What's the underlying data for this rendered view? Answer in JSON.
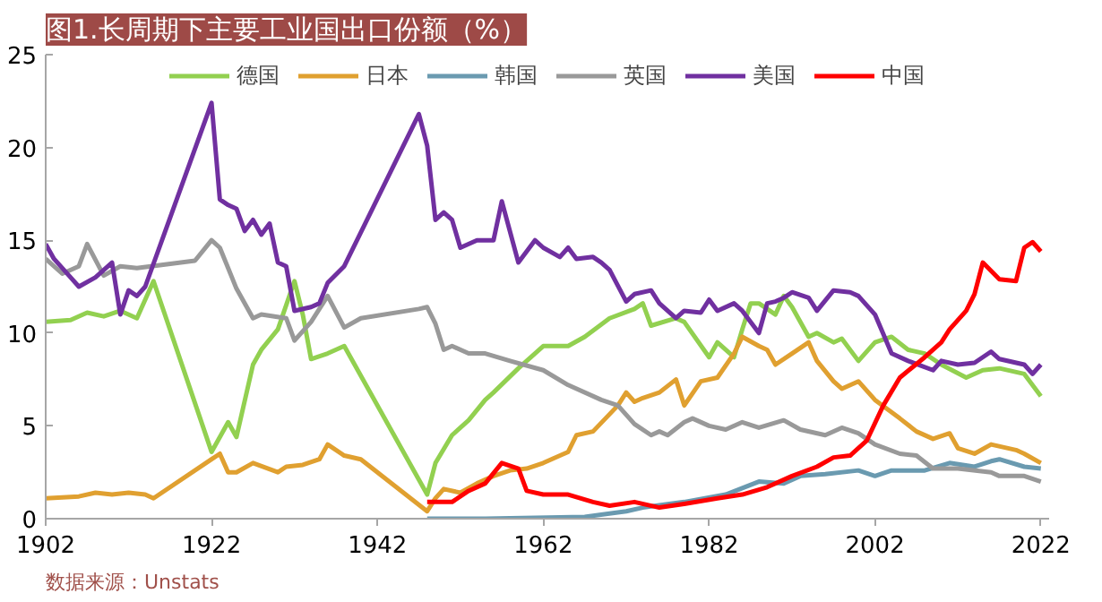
{
  "chart_data": {
    "type": "line",
    "title": "图1.长周期下主要工业国出口份额（%）",
    "annotations": [
      "数据来源：Unstats"
    ],
    "xlim": [
      1902,
      2023
    ],
    "xticks": [
      1902,
      1922,
      1942,
      1962,
      1982,
      2002,
      2022
    ],
    "ylim": [
      0,
      25
    ],
    "yticks": [
      0,
      5,
      10,
      15,
      20,
      25
    ],
    "grid": false,
    "legend": "top",
    "line_style": "solid",
    "marker": "none",
    "series": [
      {
        "name": "德国",
        "color": "#92d050",
        "x": [
          1902,
          1905,
          1907,
          1909,
          1911,
          1913,
          1915,
          1922,
          1924,
          1925,
          1927,
          1928,
          1930,
          1932,
          1933,
          1934,
          1936,
          1938,
          1948,
          1949,
          1951,
          1953,
          1955,
          1956,
          1959,
          1962,
          1965,
          1967,
          1970,
          1973,
          1974,
          1975,
          1978,
          1979,
          1982,
          1983,
          1985,
          1986,
          1987,
          1988,
          1990,
          1991,
          1992,
          1994,
          1995,
          1997,
          1998,
          2000,
          2002,
          2004,
          2006,
          2008,
          2010,
          2013,
          2015,
          2017,
          2020,
          2022
        ],
        "values": [
          10.6,
          10.7,
          11.1,
          10.9,
          11.2,
          10.8,
          12.8,
          3.6,
          5.2,
          4.4,
          8.3,
          9.1,
          10.2,
          12.8,
          11.0,
          8.6,
          8.9,
          9.3,
          1.3,
          3.0,
          4.5,
          5.3,
          6.4,
          6.8,
          8.1,
          9.3,
          9.3,
          9.8,
          10.8,
          11.3,
          11.6,
          10.4,
          10.8,
          10.6,
          8.7,
          9.5,
          8.7,
          10.2,
          11.6,
          11.6,
          11.0,
          12.0,
          11.4,
          9.8,
          10.0,
          9.5,
          9.7,
          8.5,
          9.5,
          9.8,
          9.1,
          8.9,
          8.3,
          7.6,
          8.0,
          8.1,
          7.8,
          6.6
        ]
      },
      {
        "name": "日本",
        "color": "#e0a030",
        "x": [
          1902,
          1906,
          1908,
          1910,
          1912,
          1914,
          1915,
          1922,
          1923,
          1924,
          1925,
          1927,
          1930,
          1931,
          1933,
          1935,
          1936,
          1938,
          1940,
          1948,
          1949,
          1950,
          1952,
          1954,
          1956,
          1958,
          1960,
          1962,
          1965,
          1966,
          1968,
          1971,
          1972,
          1973,
          1974,
          1976,
          1978,
          1979,
          1981,
          1983,
          1985,
          1986,
          1988,
          1989,
          1990,
          1992,
          1994,
          1995,
          1997,
          1998,
          2000,
          2002,
          2005,
          2007,
          2009,
          2011,
          2012,
          2014,
          2016,
          2019,
          2020,
          2022
        ],
        "values": [
          1.1,
          1.2,
          1.4,
          1.3,
          1.4,
          1.3,
          1.1,
          3.2,
          3.5,
          2.5,
          2.5,
          3.0,
          2.5,
          2.8,
          2.9,
          3.2,
          4.0,
          3.4,
          3.2,
          0.4,
          1.1,
          1.6,
          1.4,
          1.9,
          2.3,
          2.6,
          2.7,
          3.0,
          3.6,
          4.5,
          4.7,
          6.1,
          6.8,
          6.3,
          6.5,
          6.8,
          7.5,
          6.1,
          7.4,
          7.6,
          8.9,
          9.8,
          9.3,
          9.1,
          8.3,
          8.9,
          9.5,
          8.5,
          7.4,
          7.0,
          7.4,
          6.4,
          5.4,
          4.7,
          4.3,
          4.6,
          3.8,
          3.5,
          4.0,
          3.7,
          3.5,
          3.0
        ]
      },
      {
        "name": "韩国",
        "color": "#6a9ab0",
        "x": [
          1948,
          1955,
          1967,
          1972,
          1974,
          1979,
          1984,
          1988,
          1991,
          1993,
          1996,
          2000,
          2002,
          2004,
          2008,
          2011,
          2014,
          2016,
          2017,
          2020,
          2022
        ],
        "values": [
          0,
          0,
          0.1,
          0.4,
          0.6,
          0.9,
          1.3,
          2.0,
          1.9,
          2.3,
          2.4,
          2.6,
          2.3,
          2.6,
          2.6,
          3.0,
          2.8,
          3.1,
          3.2,
          2.8,
          2.7
        ]
      },
      {
        "name": "英国",
        "color": "#999999",
        "x": [
          1902,
          1904,
          1906,
          1907,
          1909,
          1911,
          1913,
          1920,
          1922,
          1923,
          1925,
          1927,
          1928,
          1931,
          1932,
          1934,
          1936,
          1938,
          1940,
          1947,
          1948,
          1949,
          1950,
          1951,
          1953,
          1955,
          1958,
          1962,
          1965,
          1969,
          1971,
          1973,
          1975,
          1976,
          1977,
          1979,
          1980,
          1982,
          1984,
          1986,
          1988,
          1991,
          1993,
          1996,
          1998,
          2000,
          2002,
          2005,
          2007,
          2009,
          2012,
          2016,
          2017,
          2020,
          2022
        ],
        "values": [
          14.0,
          13.2,
          13.6,
          14.8,
          13.1,
          13.6,
          13.5,
          13.9,
          15.0,
          14.6,
          12.4,
          10.8,
          11.0,
          10.8,
          9.6,
          10.6,
          12.0,
          10.3,
          10.8,
          11.3,
          11.4,
          10.5,
          9.1,
          9.3,
          8.9,
          8.9,
          8.5,
          8.0,
          7.2,
          6.4,
          6.1,
          5.1,
          4.5,
          4.7,
          4.5,
          5.2,
          5.4,
          5.0,
          4.8,
          5.2,
          4.9,
          5.3,
          4.8,
          4.5,
          4.9,
          4.6,
          4.0,
          3.5,
          3.4,
          2.7,
          2.7,
          2.5,
          2.3,
          2.3,
          2.0
        ]
      },
      {
        "name": "美国",
        "color": "#7030a0",
        "x": [
          1902,
          1903,
          1905,
          1906,
          1908,
          1910,
          1911,
          1912,
          1913,
          1914,
          1922,
          1923,
          1924,
          1925,
          1926,
          1927,
          1928,
          1929,
          1930,
          1931,
          1932,
          1934,
          1935,
          1936,
          1938,
          1947,
          1948,
          1949,
          1950,
          1951,
          1952,
          1954,
          1956,
          1957,
          1959,
          1961,
          1962,
          1964,
          1965,
          1966,
          1968,
          1969,
          1970,
          1972,
          1973,
          1975,
          1976,
          1978,
          1979,
          1981,
          1982,
          1983,
          1985,
          1986,
          1988,
          1989,
          1990,
          1991,
          1992,
          1994,
          1995,
          1997,
          1999,
          2000,
          2002,
          2004,
          2006,
          2009,
          2010,
          2012,
          2014,
          2016,
          2017,
          2020,
          2021,
          2022
        ],
        "values": [
          14.8,
          14.0,
          13.0,
          12.5,
          13.0,
          13.8,
          11.0,
          12.3,
          12.0,
          12.5,
          22.4,
          17.2,
          16.9,
          16.7,
          15.5,
          16.1,
          15.3,
          15.9,
          13.8,
          13.6,
          11.2,
          11.4,
          11.6,
          12.7,
          13.6,
          21.8,
          20.1,
          16.1,
          16.5,
          16.1,
          14.6,
          15.0,
          15.0,
          17.1,
          13.8,
          15.0,
          14.6,
          14.1,
          14.6,
          14.0,
          14.1,
          13.8,
          13.4,
          11.7,
          12.1,
          12.3,
          11.6,
          10.8,
          11.2,
          11.1,
          11.8,
          11.2,
          11.6,
          11.2,
          10.0,
          11.6,
          11.7,
          11.9,
          12.2,
          11.9,
          11.2,
          12.3,
          12.2,
          12.0,
          11.0,
          8.9,
          8.5,
          8.0,
          8.5,
          8.3,
          8.4,
          9.0,
          8.6,
          8.3,
          7.8,
          8.3
        ]
      },
      {
        "name": "中国",
        "color": "#ff0000",
        "x": [
          1948,
          1951,
          1953,
          1955,
          1957,
          1959,
          1960,
          1962,
          1965,
          1968,
          1970,
          1973,
          1976,
          1979,
          1983,
          1986,
          1989,
          1992,
          1995,
          1997,
          1999,
          2001,
          2003,
          2005,
          2008,
          2010,
          2011,
          2013,
          2014,
          2015,
          2017,
          2019,
          2020,
          2021,
          2022
        ],
        "values": [
          0.9,
          0.9,
          1.5,
          1.9,
          3.0,
          2.7,
          1.5,
          1.3,
          1.3,
          0.9,
          0.7,
          0.9,
          0.6,
          0.8,
          1.1,
          1.3,
          1.7,
          2.3,
          2.8,
          3.3,
          3.4,
          4.2,
          6.1,
          7.6,
          8.7,
          9.5,
          10.2,
          11.2,
          12.1,
          13.8,
          12.9,
          12.8,
          14.6,
          14.9,
          14.4
        ]
      }
    ]
  }
}
